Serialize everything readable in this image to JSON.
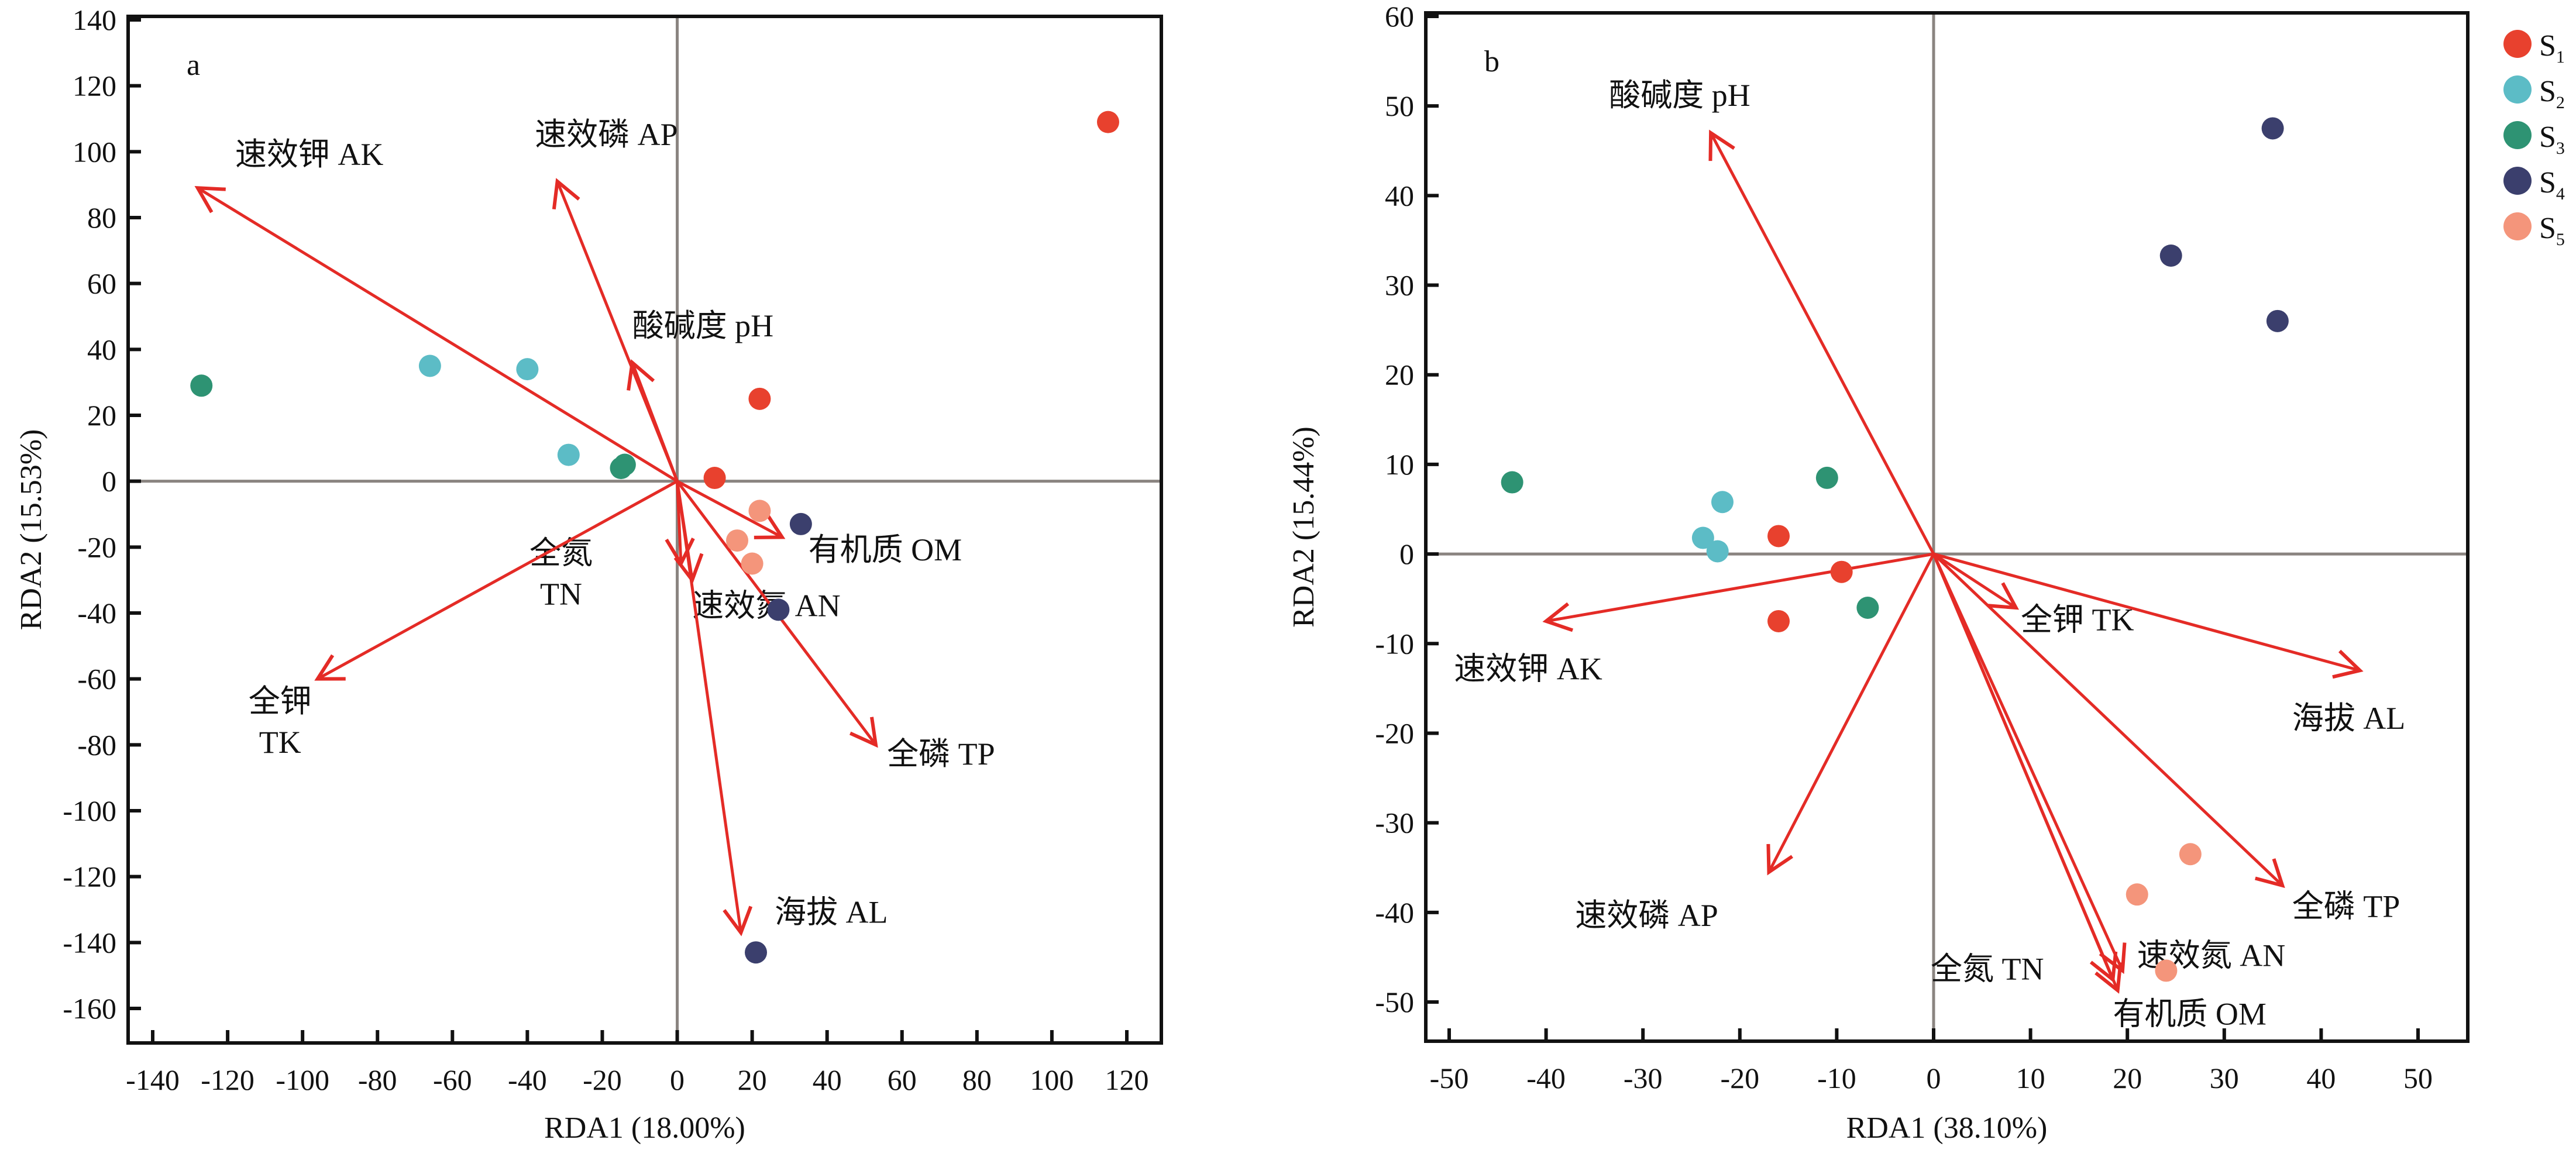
{
  "colors": {
    "S1": "#e8412e",
    "S2": "#5cbcc6",
    "S3": "#2e9373",
    "S4": "#3b3f6d",
    "S5": "#f4957b",
    "arrow": "#e42b26",
    "zero": "#8a8480"
  },
  "legend": [
    {
      "group": "S1",
      "label": "S",
      "sub": "1"
    },
    {
      "group": "S2",
      "label": "S",
      "sub": "2"
    },
    {
      "group": "S3",
      "label": "S",
      "sub": "3"
    },
    {
      "group": "S4",
      "label": "S",
      "sub": "4"
    },
    {
      "group": "S5",
      "label": "S",
      "sub": "5"
    }
  ],
  "chart_data": [
    {
      "type": "scatter",
      "panel_label": "a",
      "xlabel": "RDA1 (18.00%)",
      "ylabel": "RDA2 (15.53%)",
      "xlim": [
        -150,
        125
      ],
      "ylim": [
        -170,
        145
      ],
      "xticks": [
        -140,
        -120,
        -100,
        -80,
        -60,
        -40,
        -20,
        0,
        20,
        40,
        60,
        80,
        100,
        120
      ],
      "yticks": [
        140,
        120,
        100,
        80,
        60,
        40,
        20,
        0,
        -20,
        -40,
        -60,
        -80,
        -100,
        -120,
        -140,
        -160
      ],
      "points": {
        "S1": [
          [
            115,
            109
          ],
          [
            22,
            25
          ],
          [
            10,
            1
          ]
        ],
        "S2": [
          [
            -66,
            35
          ],
          [
            -40,
            34
          ],
          [
            -29,
            8
          ]
        ],
        "S3": [
          [
            -127,
            29
          ],
          [
            -15,
            4
          ],
          [
            -14,
            5
          ]
        ],
        "S4": [
          [
            33,
            -13
          ],
          [
            27,
            -39
          ],
          [
            21,
            -143
          ]
        ],
        "S5": [
          [
            22,
            -9
          ],
          [
            16,
            -18
          ],
          [
            20,
            -25
          ]
        ]
      },
      "vectors": [
        {
          "label": [
            "速效钾 AK"
          ],
          "end": [
            -128,
            89
          ],
          "label_at": [
            -118,
            96
          ],
          "anchor": "start"
        },
        {
          "label": [
            "速效磷 AP"
          ],
          "end": [
            -32,
            91
          ],
          "label_at": [
            -38,
            102
          ],
          "anchor": "start"
        },
        {
          "label": [
            "酸碱度 pH"
          ],
          "end": [
            -12,
            36
          ],
          "label_at": [
            -12,
            44
          ],
          "anchor": "start"
        },
        {
          "label": [
            "有机质 OM"
          ],
          "end": [
            28,
            -17
          ],
          "label_at": [
            35,
            -24
          ],
          "anchor": "start"
        },
        {
          "label": [
            "全氮",
            "TN"
          ],
          "end": [
            1,
            -25
          ],
          "label_at": [
            -31,
            -25
          ],
          "anchor": "middle"
        },
        {
          "label": [
            "速效氮 AN"
          ],
          "end": [
            4,
            -30
          ],
          "label_at": [
            4,
            -41
          ],
          "anchor": "start"
        },
        {
          "label": [
            "全钾",
            "TK"
          ],
          "end": [
            -96,
            -60
          ],
          "label_at": [
            -106,
            -70
          ],
          "anchor": "middle"
        },
        {
          "label": [
            "全磷 TP"
          ],
          "end": [
            53,
            -80
          ],
          "label_at": [
            56,
            -86
          ],
          "anchor": "start"
        },
        {
          "label": [
            "海拔 AL"
          ],
          "end": [
            17,
            -137
          ],
          "label_at": [
            26,
            -134
          ],
          "anchor": "start"
        }
      ]
    },
    {
      "type": "scatter",
      "panel_label": "b",
      "xlabel": "RDA1 (38.10%)",
      "ylabel": "RDA2 (15.44%)",
      "xlim": [
        -54,
        54
      ],
      "ylim": [
        -54,
        60
      ],
      "xticks": [
        -50,
        -40,
        -30,
        -20,
        -10,
        0,
        10,
        20,
        30,
        40,
        50
      ],
      "yticks": [
        60,
        50,
        40,
        30,
        20,
        10,
        0,
        -10,
        -20,
        -30,
        -40,
        -50
      ],
      "points": {
        "S1": [
          [
            -16,
            2
          ],
          [
            -9.5,
            -2
          ],
          [
            -16,
            -7.5
          ]
        ],
        "S2": [
          [
            -21.8,
            5.8
          ],
          [
            -23.8,
            1.8
          ],
          [
            -22.3,
            0.3
          ]
        ],
        "S3": [
          [
            -43.5,
            8
          ],
          [
            -11,
            8.5
          ],
          [
            -6.8,
            -6
          ]
        ],
        "S4": [
          [
            35,
            47.5
          ],
          [
            24.5,
            33.3
          ],
          [
            35.5,
            26
          ]
        ],
        "S5": [
          [
            26.5,
            -33.5
          ],
          [
            21,
            -38
          ],
          [
            24,
            -46.5
          ]
        ]
      },
      "vectors": [
        {
          "label": [
            "酸碱度 pH"
          ],
          "end": [
            -23,
            47
          ],
          "label_at": [
            -33.5,
            50
          ],
          "anchor": "start"
        },
        {
          "label": [
            "速效钾 AK"
          ],
          "end": [
            -40,
            -7.5
          ],
          "label_at": [
            -49.5,
            -14
          ],
          "anchor": "start"
        },
        {
          "label": [
            "全钾 TK"
          ],
          "end": [
            8.5,
            -6
          ],
          "label_at": [
            9,
            -8.5
          ],
          "anchor": "start"
        },
        {
          "label": [
            "海拔 AL"
          ],
          "end": [
            44,
            -13
          ],
          "label_at": [
            37,
            -19.5
          ],
          "anchor": "start"
        },
        {
          "label": [
            "速效磷 AP"
          ],
          "end": [
            -17,
            -35.5
          ],
          "label_at": [
            -37,
            -41.5
          ],
          "anchor": "start"
        },
        {
          "label": [
            "全磷 TP"
          ],
          "end": [
            36,
            -37
          ],
          "label_at": [
            37,
            -40.5
          ],
          "anchor": "start"
        },
        {
          "label": [
            "全氮 TN"
          ],
          "end": [
            18.5,
            -47.5
          ],
          "label_at": [
            -0.3,
            -47.5
          ],
          "anchor": "start"
        },
        {
          "label": [
            "速效氮 AN"
          ],
          "end": [
            19.5,
            -46.5
          ],
          "label_at": [
            21,
            -46
          ],
          "anchor": "start"
        },
        {
          "label": [
            "有机质 OM"
          ],
          "end": [
            19,
            -48.7
          ],
          "label_at": [
            18.5,
            -52.5
          ],
          "anchor": "start"
        }
      ]
    }
  ]
}
